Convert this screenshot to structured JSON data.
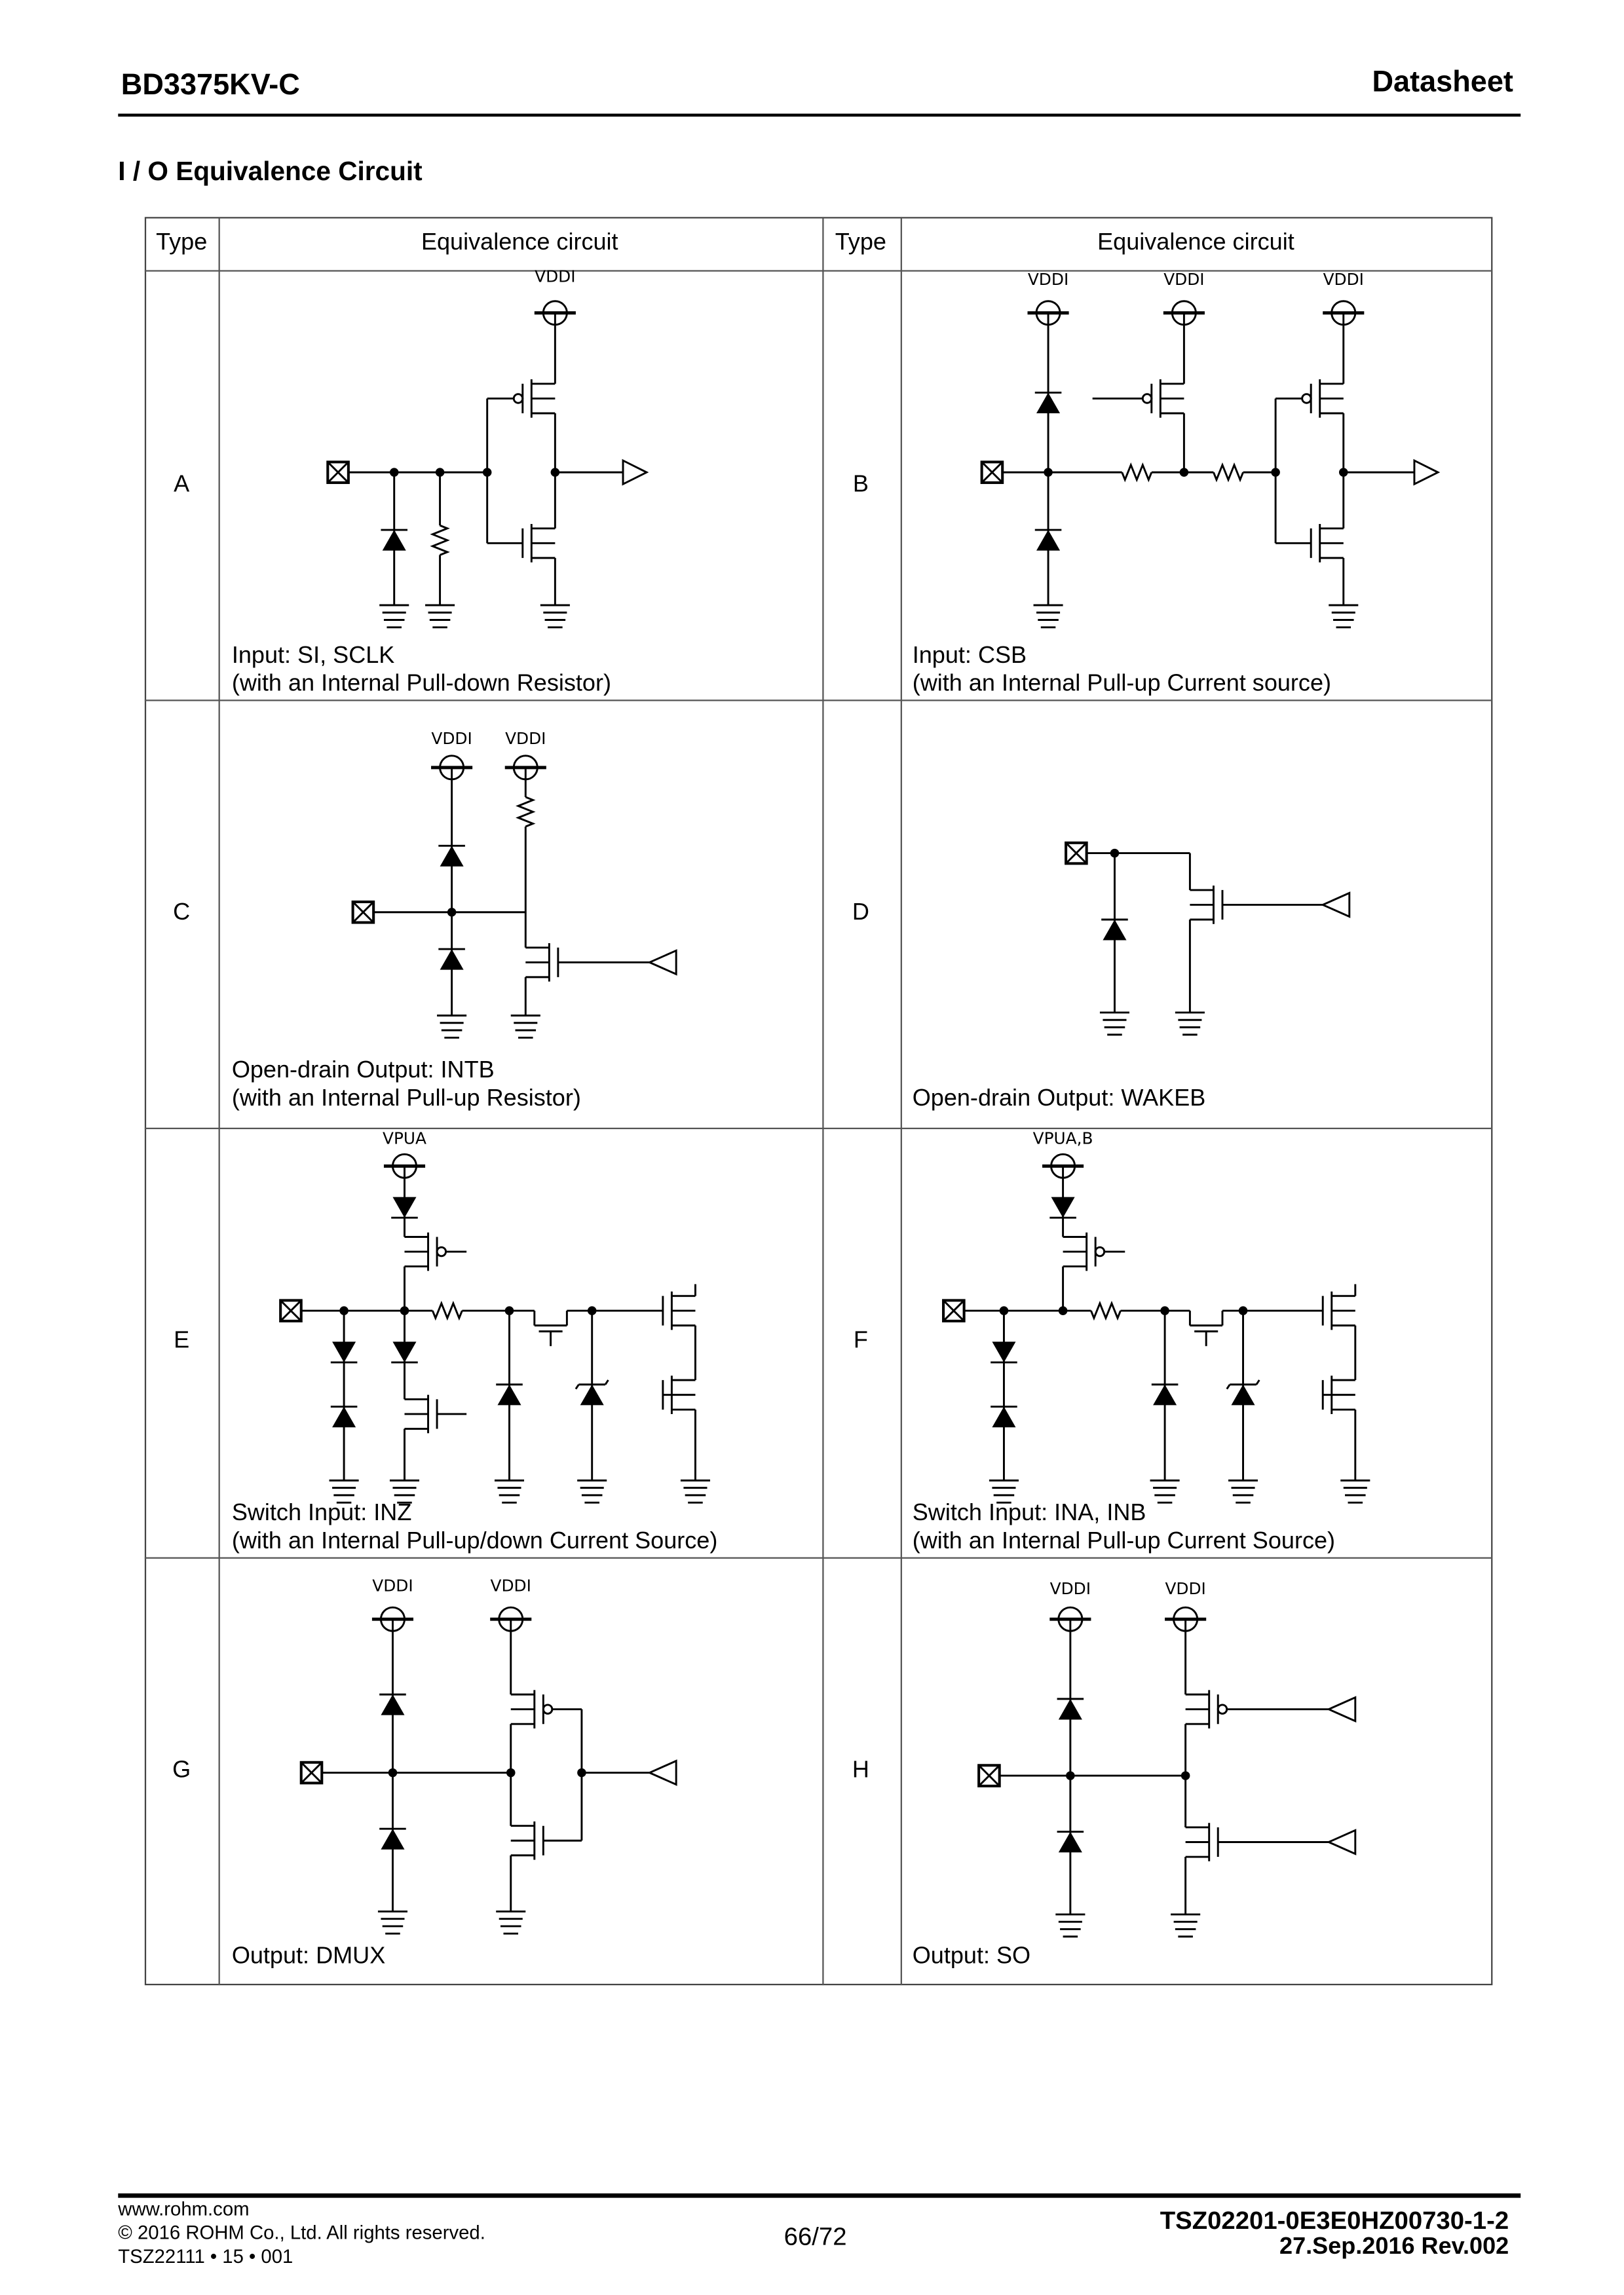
{
  "header": {
    "part_number": "BD3375KV-C",
    "doc_type": "Datasheet"
  },
  "section_title": "I / O Equivalence Circuit",
  "table": {
    "headers": [
      "Type",
      "Equivalence circuit",
      "Type",
      "Equivalence circuit"
    ],
    "rows": [
      {
        "type": "A",
        "caption1": "Input: SI, SCLK",
        "caption2": "(with an Internal Pull-down Resistor)",
        "supply_labels": [
          "VDDI"
        ]
      },
      {
        "type": "B",
        "caption1": "Input: CSB",
        "caption2": "(with an Internal Pull-up Current source)",
        "supply_labels": [
          "VDDI",
          "VDDI",
          "VDDI"
        ]
      },
      {
        "type": "C",
        "caption1": "Open-drain Output: INTB",
        "caption2": "(with an Internal Pull-up Resistor)",
        "supply_labels": [
          "VDDI",
          "VDDI"
        ]
      },
      {
        "type": "D",
        "caption1": "Open-drain Output: WAKEB",
        "caption2": "",
        "supply_labels": []
      },
      {
        "type": "E",
        "caption1": "Switch Input: INZ",
        "caption2": "(with an Internal Pull-up/down Current Source)",
        "supply_labels": [
          "VPUA"
        ]
      },
      {
        "type": "F",
        "caption1": "Switch Input: INA, INB",
        "caption2": "(with an Internal Pull-up Current Source)",
        "supply_labels": [
          "VPUA,B"
        ]
      },
      {
        "type": "G",
        "caption1": "Output: DMUX",
        "caption2": "",
        "supply_labels": [
          "VDDI",
          "VDDI"
        ]
      },
      {
        "type": "H",
        "caption1": "Output: SO",
        "caption2": "",
        "supply_labels": [
          "VDDI",
          "VDDI"
        ]
      }
    ]
  },
  "footer": {
    "website": "www.rohm.com",
    "copyright": "© 2016 ROHM Co., Ltd. All rights reserved.",
    "form_code": "TSZ22111 • 15 • 001",
    "page": "66/72",
    "doc_number": "TSZ02201-0E3E0HZ00730-1-2",
    "date_rev": "27.Sep.2016 Rev.002"
  }
}
